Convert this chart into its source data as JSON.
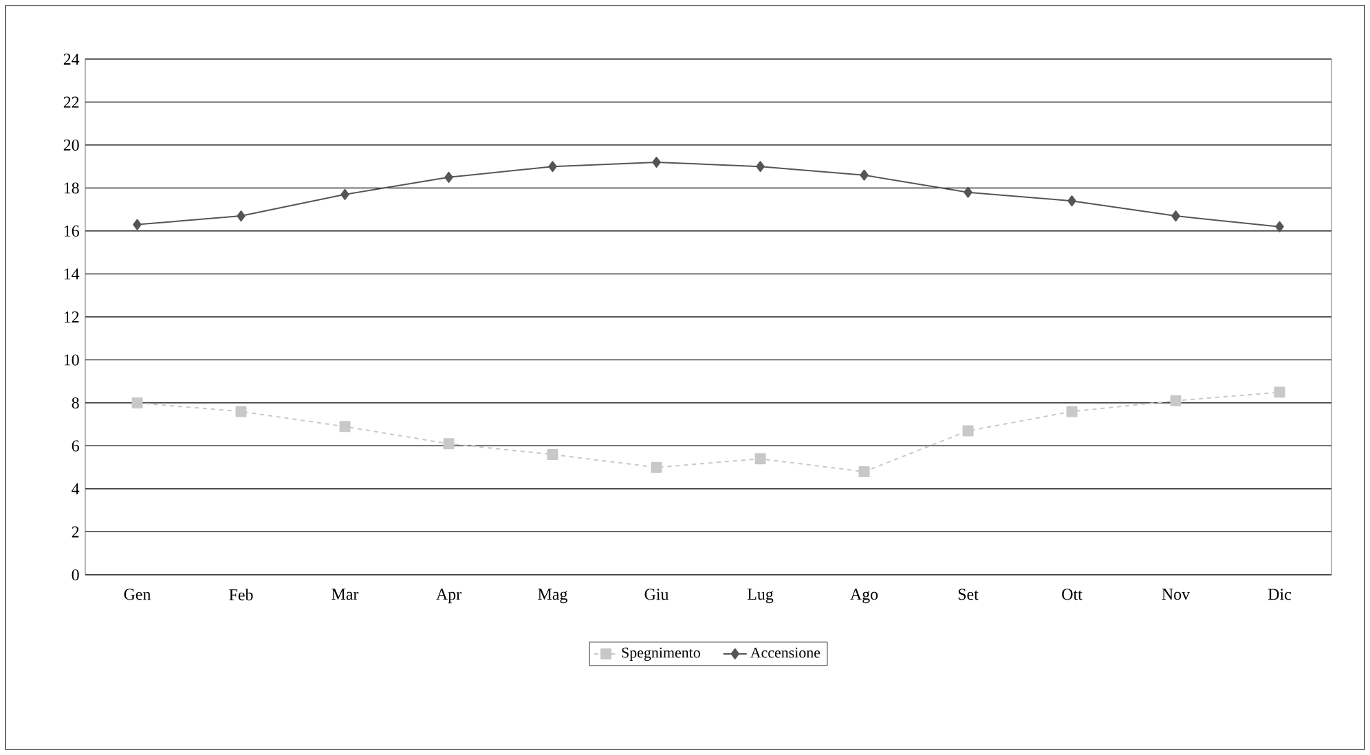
{
  "chart_data": {
    "type": "line",
    "categories": [
      "Gen",
      "Feb",
      "Mar",
      "Apr",
      "Mag",
      "Giu",
      "Lug",
      "Ago",
      "Set",
      "Ott",
      "Nov",
      "Dic"
    ],
    "series": [
      {
        "name": "Spegnimento",
        "color": "#c8c8c8",
        "marker": "square",
        "line_style": "dashed",
        "values": [
          8.0,
          7.6,
          6.9,
          6.1,
          5.6,
          5.0,
          5.4,
          4.8,
          6.7,
          7.6,
          8.1,
          8.5
        ]
      },
      {
        "name": "Accensione",
        "color": "#555555",
        "marker": "diamond",
        "line_style": "solid",
        "values": [
          16.3,
          16.7,
          17.7,
          18.5,
          19.0,
          19.2,
          19.0,
          18.6,
          17.8,
          17.4,
          16.7,
          16.2
        ]
      }
    ],
    "ylim": [
      0,
      24
    ],
    "yticks": [
      0,
      2,
      4,
      6,
      8,
      10,
      12,
      14,
      16,
      18,
      20,
      22,
      24
    ],
    "grid": "y",
    "legend": "bottom"
  }
}
